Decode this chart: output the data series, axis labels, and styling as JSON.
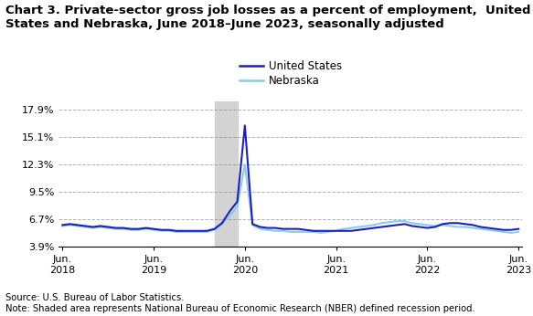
{
  "title_line1": "Chart 3. Private-sector gross job losses as a percent of employment,  United",
  "title_line2": "States and Nebraska, June 2018–June 2023, seasonally adjusted",
  "title_fontsize": 9.5,
  "ylabel_ticks": [
    "3.9%",
    "6.7%",
    "9.5%",
    "12.3%",
    "15.1%",
    "17.9%"
  ],
  "ytick_values": [
    3.9,
    6.7,
    9.5,
    12.3,
    15.1,
    17.9
  ],
  "ylim": [
    3.9,
    18.8
  ],
  "xlabel_ticks": [
    "Jun.\n2018",
    "Jun.\n2019",
    "Jun.\n2020",
    "Jun.\n2021",
    "Jun.\n2022",
    "Jun.\n2023"
  ],
  "xtick_positions": [
    0,
    12,
    24,
    36,
    48,
    60
  ],
  "recession_start": 20,
  "recession_end": 23,
  "recession_color": "#d3d3d3",
  "us_color": "#1f1fbf",
  "ne_color": "#87CEEB",
  "line_width": 1.5,
  "legend_labels": [
    "United States",
    "Nebraska"
  ],
  "source_text": "Source: U.S. Bureau of Labor Statistics.\nNote: Shaded area represents National Bureau of Economic Research (NBER) defined recession period.",
  "us_data": [
    6.1,
    6.2,
    6.1,
    6.0,
    5.9,
    6.0,
    5.9,
    5.8,
    5.8,
    5.7,
    5.7,
    5.8,
    5.7,
    5.6,
    5.6,
    5.5,
    5.5,
    5.5,
    5.5,
    5.5,
    5.7,
    6.3,
    7.5,
    8.5,
    16.3,
    6.2,
    5.9,
    5.8,
    5.8,
    5.7,
    5.7,
    5.7,
    5.6,
    5.5,
    5.5,
    5.5,
    5.5,
    5.5,
    5.5,
    5.6,
    5.7,
    5.8,
    5.9,
    6.0,
    6.1,
    6.2,
    6.0,
    5.9,
    5.8,
    5.9,
    6.2,
    6.3,
    6.3,
    6.2,
    6.1,
    5.9,
    5.8,
    5.7,
    5.6,
    5.6,
    5.7
  ],
  "ne_data": [
    6.0,
    6.1,
    6.0,
    5.9,
    5.8,
    5.9,
    5.8,
    5.7,
    5.7,
    5.6,
    5.6,
    5.7,
    5.6,
    5.5,
    5.5,
    5.4,
    5.4,
    5.4,
    5.4,
    5.4,
    5.6,
    6.2,
    7.0,
    8.0,
    12.3,
    6.1,
    5.7,
    5.6,
    5.5,
    5.5,
    5.4,
    5.4,
    5.4,
    5.4,
    5.3,
    5.4,
    5.5,
    5.7,
    5.8,
    5.9,
    6.0,
    6.1,
    6.3,
    6.4,
    6.5,
    6.5,
    6.3,
    6.2,
    6.1,
    6.0,
    6.1,
    6.0,
    5.9,
    5.9,
    5.8,
    5.7,
    5.6,
    5.5,
    5.4,
    5.3,
    5.4
  ]
}
